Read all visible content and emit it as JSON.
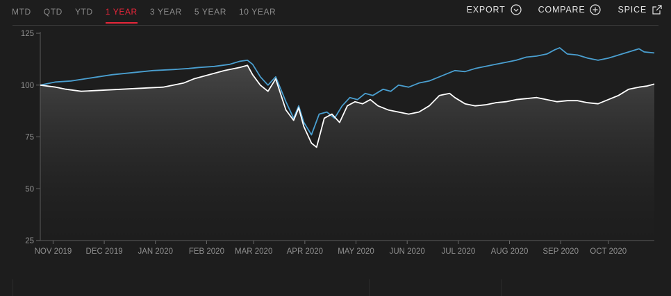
{
  "tabs": [
    {
      "label": "MTD",
      "active": false
    },
    {
      "label": "QTD",
      "active": false
    },
    {
      "label": "YTD",
      "active": false
    },
    {
      "label": "1 YEAR",
      "active": true
    },
    {
      "label": "3 YEAR",
      "active": false
    },
    {
      "label": "5 YEAR",
      "active": false
    },
    {
      "label": "10 YEAR",
      "active": false
    }
  ],
  "actions": [
    {
      "label": "EXPORT",
      "icon": "chevron-down-circle-icon"
    },
    {
      "label": "COMPARE",
      "icon": "plus-circle-icon"
    },
    {
      "label": "SPICE",
      "icon": "external-link-icon"
    }
  ],
  "colors": {
    "background": "#1d1d1d",
    "active_tab": "#e8263a",
    "series_blue": "#4a9fd0",
    "series_white": "#ffffff"
  },
  "chart_data": {
    "type": "line",
    "y_ticks": [
      25,
      50,
      75,
      100,
      125
    ],
    "ylim": [
      25,
      125
    ],
    "x_ticks": [
      "NOV 2019",
      "DEC 2019",
      "JAN 2020",
      "FEB 2020",
      "MAR 2020",
      "APR 2020",
      "MAY 2020",
      "JUN 2020",
      "JUL 2020",
      "AUG 2020",
      "SEP 2020",
      "OCT 2020"
    ],
    "x_tick_pos": [
      0.25,
      1.25,
      2.25,
      3.25,
      4.17,
      5.17,
      6.17,
      7.17,
      8.17,
      9.17,
      10.17,
      11.1
    ],
    "x_range": [
      0,
      12
    ],
    "grid": false,
    "series": [
      {
        "color": "#4a9fd0",
        "area_fill": false,
        "points": [
          [
            0,
            100
          ],
          [
            0.3,
            101.5
          ],
          [
            0.6,
            102
          ],
          [
            1.0,
            103.5
          ],
          [
            1.4,
            105
          ],
          [
            1.8,
            106
          ],
          [
            2.2,
            107
          ],
          [
            2.6,
            107.5
          ],
          [
            2.9,
            108
          ],
          [
            3.1,
            108.5
          ],
          [
            3.4,
            109
          ],
          [
            3.7,
            110
          ],
          [
            3.9,
            111.5
          ],
          [
            4.05,
            112
          ],
          [
            4.15,
            110
          ],
          [
            4.3,
            104
          ],
          [
            4.45,
            100
          ],
          [
            4.6,
            104
          ],
          [
            4.8,
            92
          ],
          [
            4.95,
            84
          ],
          [
            5.05,
            90
          ],
          [
            5.15,
            82
          ],
          [
            5.3,
            76
          ],
          [
            5.45,
            86
          ],
          [
            5.6,
            87
          ],
          [
            5.75,
            84
          ],
          [
            5.9,
            90
          ],
          [
            6.05,
            94
          ],
          [
            6.2,
            93
          ],
          [
            6.35,
            96
          ],
          [
            6.5,
            95
          ],
          [
            6.7,
            98
          ],
          [
            6.85,
            97
          ],
          [
            7.0,
            100
          ],
          [
            7.2,
            99
          ],
          [
            7.4,
            101
          ],
          [
            7.6,
            102
          ],
          [
            7.8,
            104
          ],
          [
            8.0,
            106
          ],
          [
            8.1,
            107
          ],
          [
            8.3,
            106.5
          ],
          [
            8.5,
            108
          ],
          [
            8.7,
            109
          ],
          [
            8.9,
            110
          ],
          [
            9.1,
            111
          ],
          [
            9.3,
            112
          ],
          [
            9.5,
            113.5
          ],
          [
            9.7,
            114
          ],
          [
            9.9,
            115
          ],
          [
            10.05,
            117
          ],
          [
            10.15,
            118
          ],
          [
            10.3,
            115
          ],
          [
            10.5,
            114.5
          ],
          [
            10.7,
            113
          ],
          [
            10.9,
            112
          ],
          [
            11.1,
            113
          ],
          [
            11.3,
            114.5
          ],
          [
            11.5,
            116
          ],
          [
            11.7,
            117.5
          ],
          [
            11.8,
            116
          ],
          [
            12.0,
            115.5
          ]
        ]
      },
      {
        "color": "#ffffff",
        "area_fill": true,
        "points": [
          [
            0,
            100
          ],
          [
            0.3,
            99
          ],
          [
            0.5,
            98
          ],
          [
            0.8,
            97
          ],
          [
            1.2,
            97.5
          ],
          [
            1.6,
            98
          ],
          [
            2.0,
            98.5
          ],
          [
            2.4,
            99
          ],
          [
            2.8,
            101
          ],
          [
            3.0,
            103
          ],
          [
            3.3,
            105
          ],
          [
            3.6,
            107
          ],
          [
            3.9,
            108.5
          ],
          [
            4.05,
            109.5
          ],
          [
            4.15,
            105
          ],
          [
            4.3,
            100
          ],
          [
            4.45,
            97
          ],
          [
            4.6,
            103
          ],
          [
            4.8,
            88
          ],
          [
            4.95,
            83
          ],
          [
            5.05,
            89
          ],
          [
            5.15,
            80
          ],
          [
            5.3,
            72
          ],
          [
            5.4,
            70
          ],
          [
            5.55,
            84
          ],
          [
            5.7,
            86
          ],
          [
            5.85,
            82
          ],
          [
            6.0,
            90
          ],
          [
            6.15,
            92
          ],
          [
            6.3,
            91
          ],
          [
            6.45,
            93
          ],
          [
            6.6,
            90
          ],
          [
            6.8,
            88
          ],
          [
            7.0,
            87
          ],
          [
            7.2,
            86
          ],
          [
            7.4,
            87
          ],
          [
            7.6,
            90
          ],
          [
            7.8,
            95
          ],
          [
            8.0,
            96
          ],
          [
            8.1,
            94
          ],
          [
            8.3,
            91
          ],
          [
            8.5,
            90
          ],
          [
            8.7,
            90.5
          ],
          [
            8.9,
            91.5
          ],
          [
            9.1,
            92
          ],
          [
            9.3,
            93
          ],
          [
            9.5,
            93.5
          ],
          [
            9.7,
            94
          ],
          [
            9.9,
            93
          ],
          [
            10.1,
            92
          ],
          [
            10.3,
            92.5
          ],
          [
            10.5,
            92.5
          ],
          [
            10.7,
            91.5
          ],
          [
            10.9,
            91
          ],
          [
            11.1,
            93
          ],
          [
            11.3,
            95
          ],
          [
            11.5,
            98
          ],
          [
            11.7,
            99
          ],
          [
            11.85,
            99.5
          ],
          [
            12.0,
            100.5
          ]
        ]
      }
    ]
  }
}
